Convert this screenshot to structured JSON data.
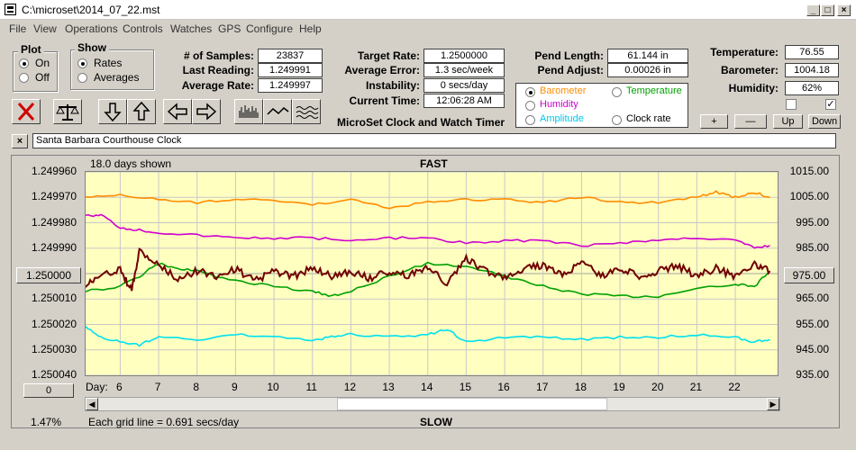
{
  "window": {
    "title": "C:\\microset\\2014_07_22.mst"
  },
  "menu": [
    "File",
    "View",
    "Operations",
    "Controls",
    "Watches",
    "GPS",
    "Configure",
    "Help"
  ],
  "plot_group": {
    "title": "Plot",
    "on": "On",
    "off": "Off",
    "selected": "On"
  },
  "show_group": {
    "title": "Show",
    "rates": "Rates",
    "averages": "Averages",
    "selected": "Rates"
  },
  "stats": {
    "samples_label": "# of Samples:",
    "samples": "23837",
    "last_label": "Last Reading:",
    "last": "1.249991",
    "avg_label": "Average Rate:",
    "avg": "1.249997",
    "target_label": "Target Rate:",
    "target": "1.2500000",
    "averr_label": "Average Error:",
    "averr": "1.3 sec/week",
    "instab_label": "Instability:",
    "instab": "0 secs/day",
    "time_label": "Current Time:",
    "time": "12:06:28 AM",
    "app_name": "MicroSet Clock and Watch Timer",
    "pend_len_label": "Pend Length:",
    "pend_len": "61.144 in",
    "pend_adj_label": "Pend Adjust:",
    "pend_adj": "0.00026 in",
    "temp_label": "Temperature:",
    "temp": "76.55",
    "baro_label": "Barometer:",
    "baro": "1004.18",
    "hum_label": "Humidity:",
    "hum": "62%"
  },
  "sensor_select": {
    "selected": "Barometer",
    "options": [
      {
        "label": "Barometer",
        "color": "#ff8c00"
      },
      {
        "label": "Temperature",
        "color": "#00a000"
      },
      {
        "label": "Humidity",
        "color": "#d000d0"
      },
      {
        "label": "Amplitude",
        "color": "#00c8e8"
      },
      {
        "label": "Clock rate",
        "color": "#000000"
      }
    ]
  },
  "scale_buttons": {
    "plus": "+",
    "minus": "—",
    "up": "Up",
    "down": "Down"
  },
  "check_a": false,
  "check_b": true,
  "close_mark": "×",
  "clock_name": "Santa Barbara Courthouse Clock",
  "icons": [
    "close-x-icon",
    "scale-balance-icon",
    "arrow-down-icon",
    "arrow-up-icon",
    "arrow-left-icon",
    "arrow-right-icon",
    "bars-icon",
    "line-icon",
    "wave-icon"
  ],
  "chart_header": {
    "days_shown": "18.0 days shown",
    "top": "FAST",
    "bottom": "SLOW",
    "grid_note": "Each grid line = 0.691 secs/day",
    "percent": "1.47%"
  },
  "center_button": "1.250000",
  "right_button": "975.00",
  "zero_button": "0",
  "scroll_position": 0.6,
  "chart_data": {
    "type": "line",
    "x_prefix": "Day:",
    "x_ticks": [
      "6",
      "7",
      "8",
      "9",
      "10",
      "11",
      "12",
      "13",
      "14",
      "15",
      "16",
      "17",
      "18",
      "19",
      "20",
      "21",
      "22"
    ],
    "x_range": [
      5.1,
      23.1
    ],
    "y_left_labels": [
      "1.249960",
      "1.249970",
      "1.249980",
      "1.249990",
      "1.250000",
      "1.250010",
      "1.250020",
      "1.250030",
      "1.250040"
    ],
    "y_left_range": [
      1.24996,
      1.25004
    ],
    "y_left_inverted": true,
    "y_right_labels": [
      "1015.00",
      "1005.00",
      "995.00",
      "985.00",
      "975.00",
      "965.00",
      "955.00",
      "945.00",
      "935.00"
    ],
    "y_right_range": [
      935,
      1015
    ],
    "grid": true,
    "series": [
      {
        "name": "Barometer",
        "color": "#ff8c00",
        "axis": "right",
        "x": [
          5.1,
          6,
          7,
          8,
          9,
          10,
          11,
          12,
          13,
          14,
          15,
          16,
          17,
          18,
          19,
          20,
          21,
          21.5,
          22,
          22.5,
          22.9
        ],
        "y": [
          1005,
          1006,
          1004,
          1003,
          1004,
          1004,
          1002,
          1004,
          1001,
          1003,
          1004,
          1004,
          1003,
          1005,
          1003,
          1003,
          1005,
          1007,
          1005,
          1007,
          1005
        ]
      },
      {
        "name": "Humidity",
        "color": "#d000d0",
        "axis": "right",
        "x": [
          5.1,
          5.5,
          6,
          6.5,
          7,
          8,
          9,
          10,
          11,
          12,
          13,
          14,
          15,
          16,
          17,
          18,
          19,
          20,
          21,
          22,
          22.5,
          22.9
        ],
        "y": [
          998,
          998,
          993,
          992,
          991,
          990,
          989,
          989,
          989,
          988,
          989,
          989,
          987,
          988,
          988,
          986,
          987,
          988,
          989,
          988,
          985,
          986
        ]
      },
      {
        "name": "Temperature",
        "color": "#00a000",
        "axis": "right",
        "x": [
          5.1,
          6,
          6.5,
          7,
          7.5,
          8,
          9,
          10,
          11,
          11.5,
          12,
          13,
          14,
          15,
          16,
          17,
          18,
          19,
          20,
          21,
          22,
          22.5,
          22.9
        ],
        "y": [
          968,
          970,
          974,
          979,
          977,
          976,
          972,
          970,
          968,
          966,
          968,
          974,
          979,
          978,
          974,
          970,
          967,
          966,
          966,
          969,
          971,
          970,
          976
        ]
      },
      {
        "name": "Clock rate",
        "color": "#700000",
        "axis": "left",
        "x": [
          5.1,
          5.5,
          6,
          6.3,
          6.5,
          7,
          7.5,
          8,
          8.5,
          9,
          9.5,
          10,
          10.5,
          11,
          11.5,
          12,
          12.5,
          13,
          13.5,
          14,
          14.5,
          15,
          15.5,
          16,
          16.5,
          17,
          17.5,
          18,
          18.5,
          19,
          19.5,
          20,
          20.5,
          21,
          21.5,
          22,
          22.5,
          22.9
        ],
        "y": [
          1.250004,
          1.250001,
          1.249998,
          1.250007,
          1.249991,
          1.249997,
          1.250002,
          1.249999,
          1.250001,
          1.249998,
          1.250003,
          1.249999,
          1.250001,
          1.249998,
          1.250001,
          1.249999,
          1.250002,
          1.249999,
          1.250001,
          1.249997,
          1.250004,
          1.249994,
          1.249999,
          1.250001,
          1.249998,
          1.249997,
          1.250001,
          1.249995,
          1.250001,
          1.249998,
          1.250001,
          1.249999,
          1.249997,
          1.250001,
          1.249998,
          1.250001,
          1.249996,
          1.249999
        ]
      },
      {
        "name": "Amplitude",
        "color": "#00e0f0",
        "axis": "right",
        "x": [
          5.1,
          5.5,
          6,
          6.5,
          7,
          8,
          9,
          10,
          11,
          11.5,
          12,
          13,
          14,
          14.5,
          15,
          16,
          17,
          18,
          19,
          20,
          21,
          22,
          22.5,
          22.9
        ],
        "y": [
          954,
          950,
          948,
          947,
          950,
          949,
          951,
          950,
          949,
          950,
          951,
          950,
          951,
          953,
          948,
          950,
          950,
          949,
          950,
          950,
          951,
          950,
          948,
          949
        ]
      }
    ]
  }
}
